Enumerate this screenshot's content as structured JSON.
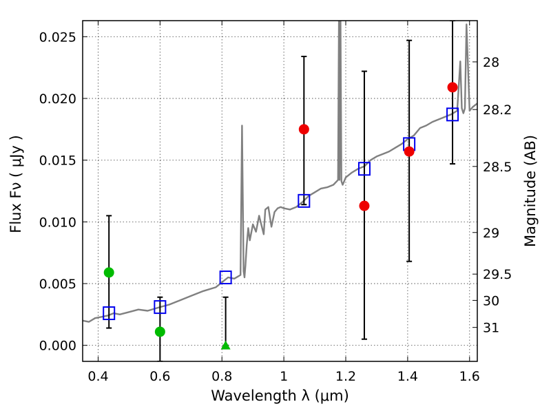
{
  "chart_data": {
    "type": "scatter",
    "xlabel": "Wavelength  λ (μm)",
    "ylabel": "Flux  Fν  ( μJy )",
    "y2label": "Magnitude (AB)",
    "xlim": [
      0.35,
      1.625
    ],
    "ylim": [
      -0.0013,
      0.0263
    ],
    "xticks": [
      0.4,
      0.6,
      0.8,
      1.0,
      1.2,
      1.4,
      1.6
    ],
    "xtick_labels": [
      "0.4",
      "0.6",
      "0.8",
      "1",
      "1.2",
      "1.4",
      "1.6"
    ],
    "yticks": [
      0.0,
      0.005,
      0.01,
      0.015,
      0.02,
      0.025
    ],
    "ytick_labels": [
      "0.000",
      "0.005",
      "0.010",
      "0.015",
      "0.020",
      "0.025"
    ],
    "y2ticks": [
      {
        "label": "28",
        "flux": 0.02296
      },
      {
        "label": "28.2",
        "flux": 0.0191
      },
      {
        "label": "28.5",
        "flux": 0.01449
      },
      {
        "label": "29",
        "flux": 0.00914
      },
      {
        "label": "29.5",
        "flux": 0.00577
      },
      {
        "label": "30",
        "flux": 0.00364
      },
      {
        "label": "31",
        "flux": 0.00145
      }
    ],
    "grid": true,
    "colors": {
      "sed": "#808080",
      "model_box": "#0000ee",
      "red": "#ee0000",
      "green": "#00bb00",
      "errorbar": "#000000"
    },
    "sed_template": {
      "name": "",
      "x": [
        0.35,
        0.37,
        0.39,
        0.41,
        0.43,
        0.45,
        0.47,
        0.5,
        0.53,
        0.56,
        0.6,
        0.63,
        0.66,
        0.7,
        0.74,
        0.78,
        0.8,
        0.82,
        0.84,
        0.86,
        0.865,
        0.87,
        0.873,
        0.876,
        0.88,
        0.885,
        0.89,
        0.9,
        0.91,
        0.92,
        0.935,
        0.94,
        0.95,
        0.96,
        0.97,
        0.98,
        0.99,
        1.0,
        1.02,
        1.04,
        1.06,
        1.08,
        1.1,
        1.12,
        1.14,
        1.16,
        1.175,
        1.178,
        1.18,
        1.183,
        1.186,
        1.19,
        1.2,
        1.22,
        1.24,
        1.26,
        1.28,
        1.3,
        1.32,
        1.34,
        1.36,
        1.38,
        1.4,
        1.42,
        1.44,
        1.46,
        1.48,
        1.5,
        1.52,
        1.54,
        1.56,
        1.57,
        1.575,
        1.58,
        1.585,
        1.59,
        1.6,
        1.61,
        1.625
      ],
      "y": [
        0.002,
        0.0019,
        0.0022,
        0.0023,
        0.0024,
        0.0026,
        0.0025,
        0.0027,
        0.0029,
        0.0028,
        0.0031,
        0.0033,
        0.0036,
        0.004,
        0.0044,
        0.0047,
        0.0051,
        0.0055,
        0.0054,
        0.0057,
        0.0178,
        0.006,
        0.0055,
        0.0065,
        0.0081,
        0.0095,
        0.0085,
        0.0098,
        0.0092,
        0.0105,
        0.009,
        0.011,
        0.0112,
        0.0096,
        0.0108,
        0.0111,
        0.0112,
        0.0111,
        0.011,
        0.0112,
        0.0116,
        0.0121,
        0.0124,
        0.0127,
        0.0128,
        0.013,
        0.0134,
        0.0263,
        0.0134,
        0.0263,
        0.0133,
        0.013,
        0.0136,
        0.014,
        0.0143,
        0.0145,
        0.015,
        0.0153,
        0.0155,
        0.0157,
        0.016,
        0.0163,
        0.0167,
        0.017,
        0.0176,
        0.0178,
        0.0181,
        0.0183,
        0.0185,
        0.0187,
        0.019,
        0.023,
        0.0192,
        0.0188,
        0.0192,
        0.026,
        0.019,
        0.0193,
        0.0196
      ]
    },
    "series": [
      {
        "marker": "square",
        "color": "#0000ee",
        "x": [
          0.435,
          0.6,
          0.812,
          1.065,
          1.26,
          1.405,
          1.545
        ],
        "y": [
          0.0026,
          0.0031,
          0.0055,
          0.0117,
          0.0143,
          0.0163,
          0.0187
        ]
      },
      {
        "marker": "circle",
        "color": "#ee0000",
        "x": [
          1.065,
          1.26,
          1.405,
          1.545
        ],
        "y": [
          0.0175,
          0.0113,
          0.0157,
          0.0209
        ],
        "yerr_low": [
          0.0114,
          0.0005,
          0.0068,
          0.0147
        ],
        "yerr_high": [
          0.0234,
          0.0222,
          0.0247,
          0.0263
        ]
      },
      {
        "marker": "circle",
        "color": "#00bb00",
        "x": [
          0.435,
          0.6
        ],
        "y": [
          0.0059,
          0.0011
        ],
        "yerr_low": [
          0.0014,
          -0.0013
        ],
        "yerr_high": [
          0.0105,
          0.0039
        ]
      },
      {
        "marker": "triangle",
        "color": "#00bb00",
        "x": [
          0.812
        ],
        "y": [
          0.0
        ],
        "yerr_low": [
          0.0
        ],
        "yerr_high": [
          0.0039
        ]
      }
    ]
  }
}
